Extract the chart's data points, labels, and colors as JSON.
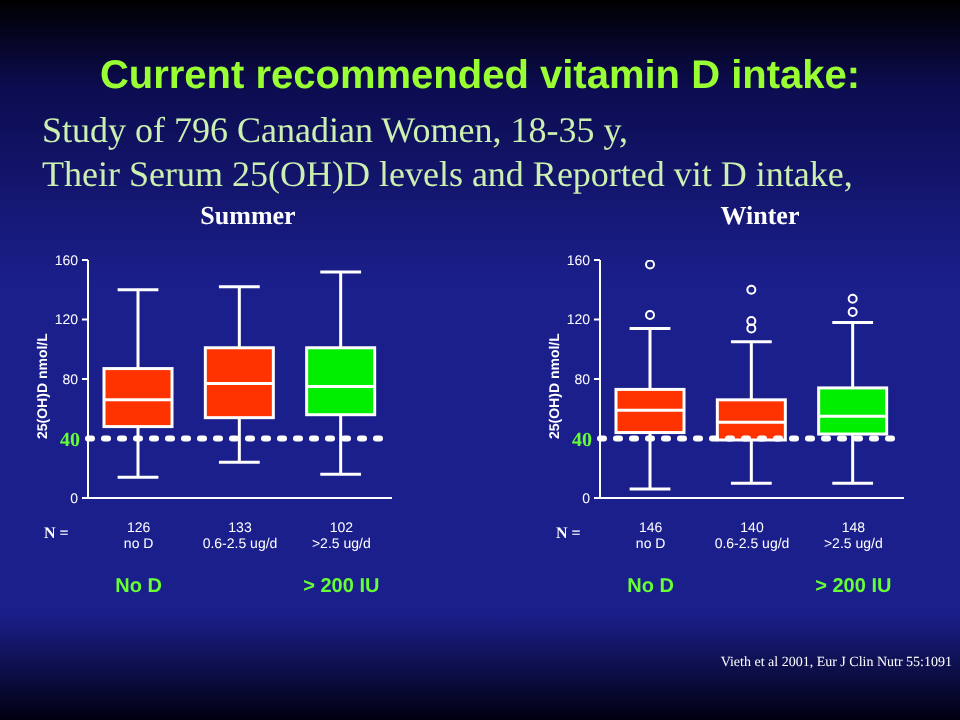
{
  "chart_data": [
    {
      "type": "other",
      "title": "Current recommended vitamin D intake:",
      "subtitle": "Study of 796 Canadian Women, 18-35 y,\nTheir Serum 25(OH)D levels and Reported vit D intake,",
      "annotations": [
        "Vieth et al 2001, Eur J Clin Nutr 55:1091"
      ]
    },
    {
      "type": "box",
      "title": "Summer",
      "ylabel": "25(OH)D nmol/L",
      "xlabel": "N =",
      "categories": [
        "126\nno D",
        "133\n0.6-2.5 ug/d",
        "102\n>2.5 ug/d"
      ],
      "colors": [
        "#ff3300",
        "#ff3300",
        "#00ee00"
      ],
      "boxes": [
        {
          "low": 14,
          "q1": 48,
          "median": 66,
          "q3": 87,
          "high": 140
        },
        {
          "low": 24,
          "q1": 54,
          "median": 77,
          "q3": 101,
          "high": 142
        },
        {
          "low": 16,
          "q1": 56,
          "median": 75,
          "q3": 101,
          "high": 152
        }
      ],
      "ylim": [
        0,
        160
      ],
      "yticks": [
        0,
        80,
        120,
        160
      ],
      "ref_lines": [
        {
          "axis": "y",
          "value": 40,
          "label": "40",
          "color": "#ffffff",
          "line_style": "dotted"
        }
      ],
      "annotations": [
        "No D",
        "> 200 IU"
      ]
    },
    {
      "type": "box",
      "title": "Winter",
      "ylabel": "25(OH)D nmol/L",
      "xlabel": "N =",
      "categories": [
        "146\nno D",
        "140\n0.6-2.5 ug/d",
        "148\n>2.5 ug/d"
      ],
      "colors": [
        "#ff3300",
        "#ff3300",
        "#00ee00"
      ],
      "boxes": [
        {
          "low": 6,
          "q1": 44,
          "median": 59,
          "q3": 73,
          "high": 114,
          "outliers": [
            123,
            157
          ]
        },
        {
          "low": 10,
          "q1": 39,
          "median": 51,
          "q3": 66,
          "high": 105,
          "outliers": [
            114,
            119,
            140
          ]
        },
        {
          "low": 10,
          "q1": 43,
          "median": 55,
          "q3": 74,
          "high": 118,
          "outliers": [
            125,
            134
          ]
        }
      ],
      "ylim": [
        0,
        160
      ],
      "yticks": [
        0,
        80,
        120,
        160
      ],
      "ref_lines": [
        {
          "axis": "y",
          "value": 40,
          "label": "40",
          "color": "#ffffff",
          "line_style": "dotted"
        }
      ],
      "annotations": [
        "No D",
        "> 200 IU"
      ]
    }
  ]
}
